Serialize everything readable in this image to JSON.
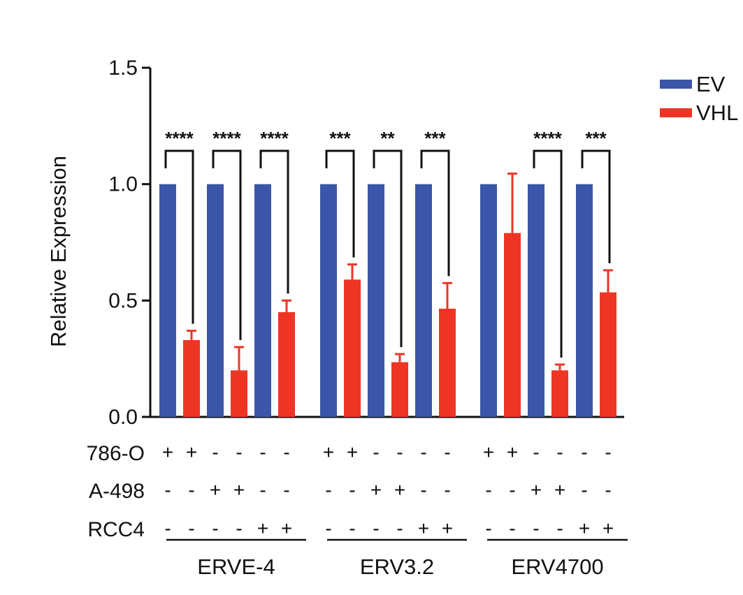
{
  "chart_data": {
    "type": "bar",
    "title": "",
    "xlabel": "",
    "ylabel": "Relative Expression",
    "ylim": [
      0,
      1.5
    ],
    "yticks": [
      "0.0",
      "0.5",
      "1.0",
      "1.5"
    ],
    "grid": false,
    "legend_position": "top-right",
    "colors": {
      "EV": "#3b56a8",
      "VHL": "#ee3524"
    },
    "series": [
      {
        "name": "EV"
      },
      {
        "name": "VHL"
      }
    ],
    "groups": [
      {
        "label": "ERVE-4",
        "cells": [
          {
            "ev": 1.0,
            "vhl": 0.33,
            "vhl_err": 0.04,
            "sig": "****"
          },
          {
            "ev": 1.0,
            "vhl": 0.2,
            "vhl_err": 0.1,
            "sig": "****"
          },
          {
            "ev": 1.0,
            "vhl": 0.45,
            "vhl_err": 0.05,
            "sig": "****"
          }
        ]
      },
      {
        "label": "ERV3.2",
        "cells": [
          {
            "ev": 1.0,
            "vhl": 0.59,
            "vhl_err": 0.065,
            "sig": "***"
          },
          {
            "ev": 1.0,
            "vhl": 0.235,
            "vhl_err": 0.035,
            "sig": "**"
          },
          {
            "ev": 1.0,
            "vhl": 0.465,
            "vhl_err": 0.11,
            "sig": "***"
          }
        ]
      },
      {
        "label": "ERV4700",
        "cells": [
          {
            "ev": 1.0,
            "vhl": 0.79,
            "vhl_err": 0.255,
            "sig": ""
          },
          {
            "ev": 1.0,
            "vhl": 0.2,
            "vhl_err": 0.025,
            "sig": "****"
          },
          {
            "ev": 1.0,
            "vhl": 0.535,
            "vhl_err": 0.095,
            "sig": "***"
          }
        ]
      }
    ],
    "conditions": [
      {
        "label": "786-O",
        "marks": [
          "+",
          "+",
          "-",
          "-",
          "-",
          "-"
        ]
      },
      {
        "label": "A-498",
        "marks": [
          "-",
          "-",
          "+",
          "+",
          "-",
          "-"
        ]
      },
      {
        "label": "RCC4",
        "marks": [
          "-",
          "-",
          "-",
          "-",
          "+",
          "+"
        ]
      }
    ]
  }
}
